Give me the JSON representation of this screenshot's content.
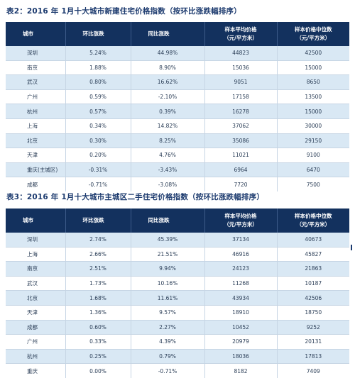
{
  "table2": {
    "title": "表2：2016 年 1月十大城市新建住宅价格指数（按环比涨跌幅排序）",
    "headers": {
      "city": "城市",
      "mom": "环比涨跌",
      "yoy": "同比涨跌",
      "avg_line1": "样本平均价格",
      "avg_line2": "（元/平方米）",
      "median_line1": "样本价格中位数",
      "median_line2": "（元/平方米）"
    },
    "rows": [
      {
        "city": "深圳",
        "mom": "5.24%",
        "yoy": "44.98%",
        "avg": "44823",
        "median": "42500"
      },
      {
        "city": "南京",
        "mom": "1.88%",
        "yoy": "8.90%",
        "avg": "15036",
        "median": "15000"
      },
      {
        "city": "武汉",
        "mom": "0.80%",
        "yoy": "16.62%",
        "avg": "9051",
        "median": "8650"
      },
      {
        "city": "广州",
        "mom": "0.59%",
        "yoy": "-2.10%",
        "avg": "17158",
        "median": "13500"
      },
      {
        "city": "杭州",
        "mom": "0.57%",
        "yoy": "0.39%",
        "avg": "16278",
        "median": "15000"
      },
      {
        "city": "上海",
        "mom": "0.34%",
        "yoy": "14.82%",
        "avg": "37062",
        "median": "30000"
      },
      {
        "city": "北京",
        "mom": "0.30%",
        "yoy": "8.25%",
        "avg": "35086",
        "median": "29150"
      },
      {
        "city": "天津",
        "mom": "0.20%",
        "yoy": "4.76%",
        "avg": "11021",
        "median": "9100"
      },
      {
        "city": "重庆(主城区)",
        "mom": "-0.31%",
        "yoy": "-3.43%",
        "avg": "6964",
        "median": "6470"
      },
      {
        "city": "成都",
        "mom": "-0.71%",
        "yoy": "-3.08%",
        "avg": "7720",
        "median": "7500"
      }
    ]
  },
  "table3": {
    "title": "表3：2016 年 1月十大城市主城区二手住宅价格指数（按环比涨跌幅排序）",
    "headers": {
      "city": "城市",
      "mom": "环比涨跌",
      "yoy": "同比涨跌",
      "avg_line1": "样本平均价格",
      "avg_line2": "（元/平方米）",
      "median_line1": "样本价格中位数",
      "median_line2": "（元/平方米）"
    },
    "rows": [
      {
        "city": "深圳",
        "mom": "2.74%",
        "yoy": "45.39%",
        "avg": "37134",
        "median": "40673"
      },
      {
        "city": "上海",
        "mom": "2.66%",
        "yoy": "21.51%",
        "avg": "46916",
        "median": "45827"
      },
      {
        "city": "南京",
        "mom": "2.51%",
        "yoy": "9.94%",
        "avg": "24123",
        "median": "21863"
      },
      {
        "city": "武汉",
        "mom": "1.73%",
        "yoy": "10.16%",
        "avg": "11268",
        "median": "10187"
      },
      {
        "city": "北京",
        "mom": "1.68%",
        "yoy": "11.61%",
        "avg": "43934",
        "median": "42506"
      },
      {
        "city": "天津",
        "mom": "1.36%",
        "yoy": "9.57%",
        "avg": "18910",
        "median": "18750"
      },
      {
        "city": "成都",
        "mom": "0.60%",
        "yoy": "2.27%",
        "avg": "10452",
        "median": "9252"
      },
      {
        "city": "广州",
        "mom": "0.33%",
        "yoy": "4.39%",
        "avg": "20979",
        "median": "20131"
      },
      {
        "city": "杭州",
        "mom": "0.25%",
        "yoy": "0.79%",
        "avg": "18036",
        "median": "17813"
      },
      {
        "city": "重庆",
        "mom": "0.00%",
        "yoy": "-0.71%",
        "avg": "8182",
        "median": "7409"
      }
    ]
  }
}
